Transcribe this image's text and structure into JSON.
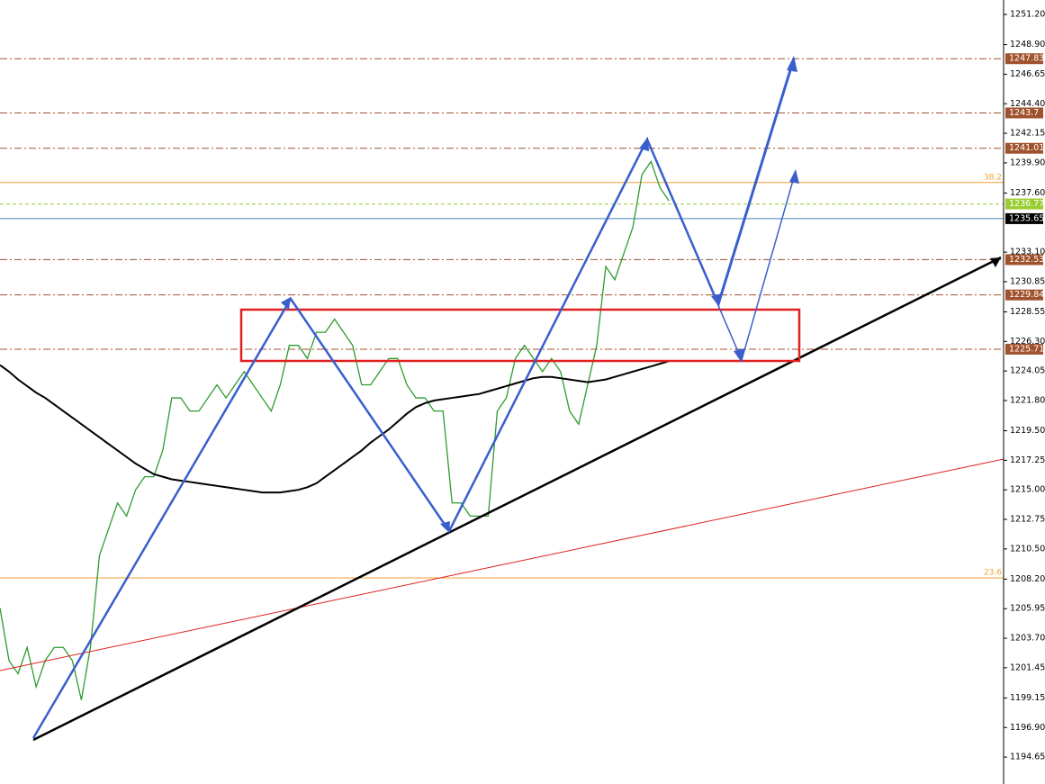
{
  "chart_data": {
    "type": "line",
    "x": [
      0,
      1,
      2,
      3,
      4,
      5,
      6,
      7,
      8,
      9,
      10,
      11,
      12,
      13,
      14,
      15,
      16,
      17,
      18,
      19,
      20,
      21,
      22,
      23,
      24,
      25,
      26,
      27,
      28,
      29,
      30,
      31,
      32,
      33,
      34,
      35,
      36,
      37,
      38,
      39,
      40,
      41,
      42,
      43,
      44,
      45,
      46,
      47,
      48,
      49,
      50,
      51,
      52,
      53,
      54,
      55,
      56,
      57,
      58,
      59,
      60,
      61,
      62,
      63,
      64,
      65,
      66,
      67,
      68,
      69,
      70,
      71,
      72,
      73,
      74
    ],
    "xlim": [
      0,
      111
    ],
    "series": [
      {
        "color": "#2e9b2e",
        "values": [
          1206,
          1202,
          1201,
          1203,
          1200,
          1202,
          1203,
          1203,
          1202,
          1199,
          1203,
          1210,
          1212,
          1214,
          1213,
          1215,
          1216,
          1216,
          1218,
          1222,
          1222,
          1221,
          1221,
          1222,
          1223,
          1222,
          1223,
          1224,
          1223,
          1222,
          1221,
          1223,
          1226,
          1226,
          1225,
          1227,
          1227,
          1228,
          1227,
          1226,
          1223,
          1223,
          1224,
          1225,
          1225,
          1223,
          1222,
          1222,
          1221,
          1221,
          1214,
          1214,
          1213,
          1213,
          1213,
          1221,
          1222,
          1225,
          1226,
          1225,
          1224,
          1225,
          1224,
          1221,
          1220,
          1223,
          1226,
          1232,
          1231,
          1233,
          1235,
          1239,
          1240,
          1238,
          1237
        ]
      },
      {
        "color": "#000000",
        "values": [
          1224.5,
          1224,
          1223.4,
          1222.9,
          1222.4,
          1222,
          1221.5,
          1221,
          1220.5,
          1220,
          1219.5,
          1219,
          1218.5,
          1218,
          1217.5,
          1217,
          1216.6,
          1216.2,
          1216,
          1215.8,
          1215.7,
          1215.6,
          1215.5,
          1215.4,
          1215.3,
          1215.2,
          1215.1,
          1215,
          1214.9,
          1214.8,
          1214.8,
          1214.8,
          1214.9,
          1215,
          1215.2,
          1215.5,
          1216,
          1216.5,
          1217,
          1217.5,
          1218,
          1218.6,
          1219.1,
          1219.6,
          1220.2,
          1220.8,
          1221.3,
          1221.6,
          1221.8,
          1221.9,
          1222,
          1222.1,
          1222.2,
          1222.3,
          1222.5,
          1222.7,
          1222.9,
          1223.1,
          1223.3,
          1223.5,
          1223.6,
          1223.6,
          1223.5,
          1223.4,
          1223.3,
          1223.2,
          1223.3,
          1223.4,
          1223.6,
          1223.8,
          1224,
          1224.2,
          1224.4,
          1224.6,
          1224.8
        ]
      }
    ],
    "ylim": [
      1192.6,
      1252.3
    ],
    "yticks": [
      {
        "value": 1251.2,
        "label": "1251.20"
      },
      {
        "value": 1248.9,
        "label": "1248.90"
      },
      1246.65,
      {
        "value": 1244.4,
        "label": "1244.40"
      },
      1242.15,
      {
        "value": 1239.9,
        "label": "1239.90"
      },
      {
        "value": 1237.6,
        "label": "1237.60"
      },
      {
        "value": 1233.1,
        "label": "1233.10"
      },
      1230.85,
      1228.55,
      {
        "value": 1226.3,
        "label": "1226.30"
      },
      1224.05,
      {
        "value": 1221.8,
        "label": "1221.80"
      },
      {
        "value": 1219.5,
        "label": "1219.50"
      },
      1217.25,
      {
        "value": 1215,
        "label": "1215.00"
      },
      1212.75,
      {
        "value": 1210.5,
        "label": "1210.50"
      },
      {
        "value": 1208.2,
        "label": "1208.20"
      },
      1205.95,
      {
        "value": 1203.7,
        "label": "1203.70"
      },
      1201.45,
      1199.15,
      {
        "value": 1196.9,
        "label": "1196.90"
      },
      1194.65
    ],
    "levels": [
      1247.83,
      1243.7,
      1241.01,
      1236.77,
      1235.65,
      1232.53,
      1229.84,
      1225.71
    ],
    "level_colors": [
      "#a0522d",
      "#a0522d",
      "#a0522d",
      "#9acd32",
      "#000000",
      "#a0522d",
      "#a0522d",
      "#a0522d"
    ],
    "fib_levels": [
      {
        "value": 1238.4,
        "label": "38.2"
      },
      {
        "value": 1208.3,
        "label": "23.6"
      }
    ],
    "fib_color": "#f0a030"
  }
}
